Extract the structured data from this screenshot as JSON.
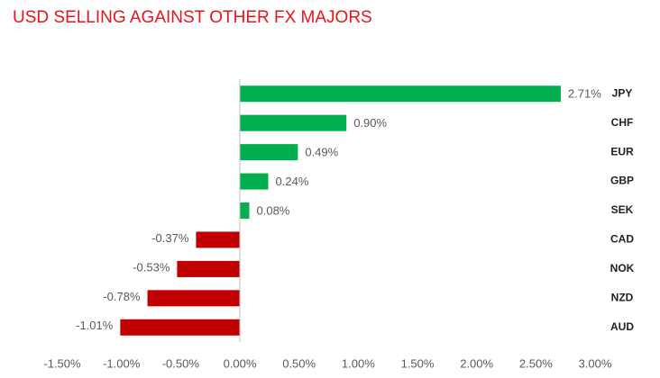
{
  "chart_data": {
    "type": "bar",
    "orientation": "horizontal",
    "title": "USD SELLING AGAINST OTHER FX MAJORS",
    "categories": [
      "JPY",
      "CHF",
      "EUR",
      "GBP",
      "SEK",
      "CAD",
      "NOK",
      "NZD",
      "AUD"
    ],
    "values": [
      2.71,
      0.9,
      0.49,
      0.24,
      0.08,
      -0.37,
      -0.53,
      -0.78,
      -1.01
    ],
    "value_labels": [
      "2.71%",
      "0.90%",
      "0.49%",
      "0.24%",
      "0.08%",
      "-0.37%",
      "-0.53%",
      "-0.78%",
      "-1.01%"
    ],
    "positive_color": "#00b050",
    "negative_color": "#c00000",
    "xlim": [
      -1.5,
      3.0
    ],
    "xticks": [
      {
        "value": -1.5,
        "label": "-1.50%"
      },
      {
        "value": -1.0,
        "label": "-1.00%"
      },
      {
        "value": -0.5,
        "label": "-0.50%"
      },
      {
        "value": 0,
        "label": "0.00%"
      },
      {
        "value": 0.5,
        "label": "0.50%"
      },
      {
        "value": 1.0,
        "label": "1.00%"
      },
      {
        "value": 1.5,
        "label": "1.50%"
      },
      {
        "value": 2.0,
        "label": "2.00%"
      },
      {
        "value": 2.5,
        "label": "2.50%"
      },
      {
        "value": 3.0,
        "label": "3.00%"
      }
    ],
    "grid": false
  }
}
